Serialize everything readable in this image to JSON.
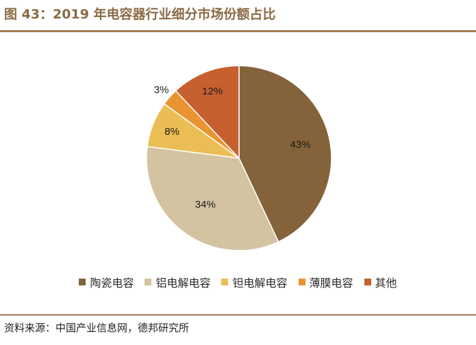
{
  "header": {
    "title": "图 43：2019 年电容器行业细分市场份额占比"
  },
  "chart_data": {
    "type": "pie",
    "title": "2019 年电容器行业细分市场份额占比",
    "start_angle_deg": 0,
    "direction": "clockwise",
    "slices": [
      {
        "name": "陶瓷电容",
        "value": 43,
        "label": "43%",
        "color": "#85633a"
      },
      {
        "name": "铝电解电容",
        "value": 34,
        "label": "34%",
        "color": "#d4c3a0"
      },
      {
        "name": "钽电解电容",
        "value": 8,
        "label": "8%",
        "color": "#ebbe55"
      },
      {
        "name": "薄膜电容",
        "value": 3,
        "label": "3%",
        "color": "#e99431"
      },
      {
        "name": "其他",
        "value": 12,
        "label": "12%",
        "color": "#c7602f"
      }
    ],
    "legend_position": "bottom"
  },
  "footer": {
    "source": "资料来源：中国产业信息网，德邦研究所"
  }
}
